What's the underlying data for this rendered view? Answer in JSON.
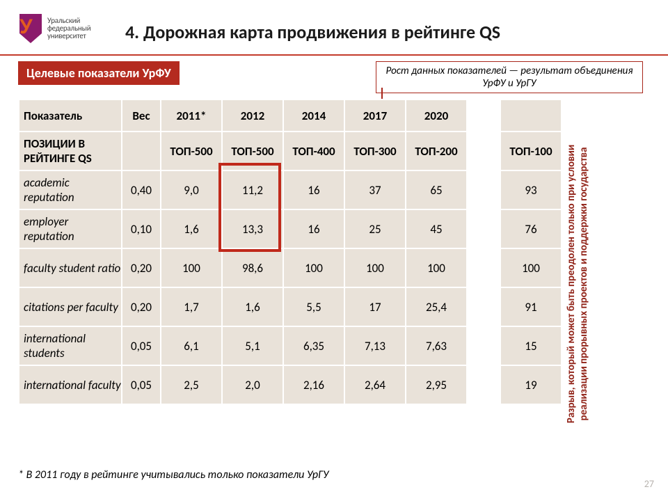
{
  "logo": {
    "name_line1": "Уральский",
    "name_line2": "федеральный",
    "name_line3": "университет",
    "mark_color": "#8b1a6b",
    "u_color": "#e25b1f"
  },
  "title": "4.  Дорожная карта продвижения в рейтинге QS",
  "subbadge": "Целевые показатели УрФУ",
  "callout": "Рост данных показателей — результат объединения УрФУ и УрГУ",
  "vertical_note": "Разрыв, который может быть преодолен только при условии реализации прорывных проектов и поддержки государства",
  "footnote": "* В 2011 году в рейтинге учитывались только показатели УрГУ",
  "page": "27",
  "table": {
    "head": [
      "Показатель",
      "Вес",
      "2011*",
      "2012",
      "2014",
      "2017",
      "2020"
    ],
    "gap_last": "",
    "rows": [
      {
        "label": "ПОЗИЦИИ В РЕЙТИНГЕ QS",
        "bold": true,
        "vals": [
          "",
          "ТОП-500",
          "ТОП-500",
          "ТОП-400",
          "ТОП-300",
          "ТОП-200"
        ],
        "last": "ТОП-100"
      },
      {
        "label": "academic reputation",
        "vals": [
          "0,40",
          "9,0",
          "11,2",
          "16",
          "37",
          "65"
        ],
        "last": "93"
      },
      {
        "label": "employer reputation",
        "vals": [
          "0,10",
          "1,6",
          "13,3",
          "16",
          "25",
          "45"
        ],
        "last": "76"
      },
      {
        "label": "faculty student ratio",
        "vals": [
          "0,20",
          "100",
          "98,6",
          "100",
          "100",
          "100"
        ],
        "last": "100"
      },
      {
        "label": "citations per faculty",
        "vals": [
          "0,20",
          "1,7",
          "1,6",
          "5,5",
          "17",
          "25,4"
        ],
        "last": "91"
      },
      {
        "label": "international students",
        "vals": [
          "0,05",
          "6,1",
          "5,1",
          "6,35",
          "7,13",
          "7,63"
        ],
        "last": "15"
      },
      {
        "label": "international faculty",
        "vals": [
          "0,05",
          "2,5",
          "2,0",
          "2,16",
          "2,64",
          "2,95"
        ],
        "last": "19"
      }
    ]
  },
  "colors": {
    "accent_red": "#b42b1f",
    "line_red": "#c43b2b",
    "cell_bg": "#e9e2d9",
    "border": "#ffffff"
  }
}
